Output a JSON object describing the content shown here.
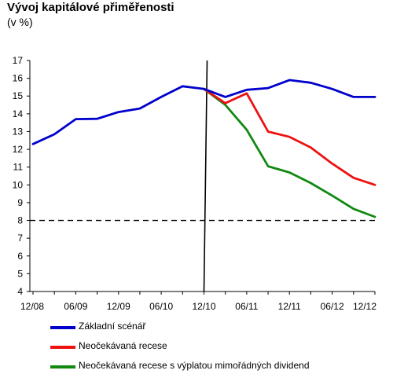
{
  "title": "Vývoj kapitálové přiměřenosti",
  "subtitle": "(v %)",
  "chart_data": {
    "type": "line",
    "title": "Vývoj kapitálové přiměřenosti",
    "subtitle": "(v %)",
    "xlabel": "",
    "ylabel": "",
    "ylim": [
      4,
      17
    ],
    "yticks": [
      4,
      5,
      6,
      7,
      8,
      9,
      10,
      11,
      12,
      13,
      14,
      15,
      16,
      17
    ],
    "x_tick_labels": [
      "12/08",
      "06/09",
      "12/09",
      "06/10",
      "12/10",
      "06/11",
      "12/11",
      "06/12",
      "12/12"
    ],
    "x_periods": [
      "12/08",
      "03/09",
      "06/09",
      "09/09",
      "12/09",
      "03/10",
      "06/10",
      "09/10",
      "12/10",
      "03/11",
      "06/11",
      "09/11",
      "12/11",
      "03/12",
      "06/12",
      "09/12",
      "12/12"
    ],
    "reference_line": {
      "y": 8,
      "style": "dashed",
      "color": "#000000"
    },
    "divider_period": "12/10",
    "legend_position": "bottom",
    "grid": false,
    "series": [
      {
        "name": "Základní scénář",
        "color": "#0000cc",
        "points": [
          {
            "x": "12/08",
            "y": 12.3
          },
          {
            "x": "03/09",
            "y": 12.85
          },
          {
            "x": "06/09",
            "y": 13.7
          },
          {
            "x": "09/09",
            "y": 13.72
          },
          {
            "x": "12/09",
            "y": 14.1
          },
          {
            "x": "03/10",
            "y": 14.3
          },
          {
            "x": "06/10",
            "y": 14.95
          },
          {
            "x": "09/10",
            "y": 15.55
          },
          {
            "x": "12/10",
            "y": 15.4
          },
          {
            "x": "03/11",
            "y": 14.95
          },
          {
            "x": "06/11",
            "y": 15.35
          },
          {
            "x": "09/11",
            "y": 15.45
          },
          {
            "x": "12/11",
            "y": 15.9
          },
          {
            "x": "03/12",
            "y": 15.75
          },
          {
            "x": "06/12",
            "y": 15.4
          },
          {
            "x": "09/12",
            "y": 14.95
          },
          {
            "x": "12/12",
            "y": 14.95
          }
        ]
      },
      {
        "name": "Neočekávaná recese",
        "color": "#ee1111",
        "points": [
          {
            "x": "12/10",
            "y": 15.4
          },
          {
            "x": "03/11",
            "y": 14.6
          },
          {
            "x": "06/11",
            "y": 15.15
          },
          {
            "x": "09/11",
            "y": 13.0
          },
          {
            "x": "12/11",
            "y": 12.7
          },
          {
            "x": "03/12",
            "y": 12.1
          },
          {
            "x": "06/12",
            "y": 11.2
          },
          {
            "x": "09/12",
            "y": 10.4
          },
          {
            "x": "12/12",
            "y": 10.0
          }
        ]
      },
      {
        "name": "Neočekávaná recese s výplatou mimořádných dividend",
        "color": "#118811",
        "points": [
          {
            "x": "12/10",
            "y": 15.4
          },
          {
            "x": "03/11",
            "y": 14.5
          },
          {
            "x": "06/11",
            "y": 13.1
          },
          {
            "x": "09/11",
            "y": 11.05
          },
          {
            "x": "12/11",
            "y": 10.7
          },
          {
            "x": "03/12",
            "y": 10.1
          },
          {
            "x": "06/12",
            "y": 9.4
          },
          {
            "x": "09/12",
            "y": 8.65
          },
          {
            "x": "12/12",
            "y": 8.2
          }
        ]
      }
    ]
  }
}
